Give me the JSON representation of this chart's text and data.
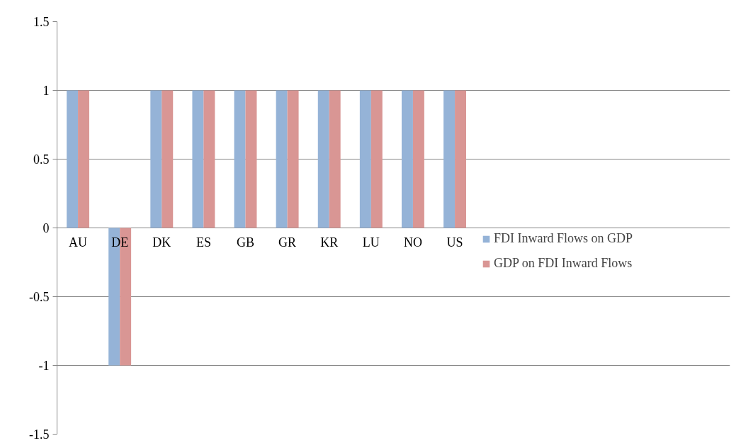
{
  "chart_data": {
    "type": "bar",
    "categories": [
      "AU",
      "DE",
      "DK",
      "ES",
      "GB",
      "GR",
      "KR",
      "LU",
      "NO",
      "US"
    ],
    "series": [
      {
        "name": "FDI Inward Flows on GDP",
        "color": "#95b3d7",
        "values": [
          1,
          -1,
          1,
          1,
          1,
          1,
          1,
          1,
          1,
          1
        ]
      },
      {
        "name": "GDP on FDI Inward Flows",
        "color": "#d99694",
        "values": [
          1,
          -1,
          1,
          1,
          1,
          1,
          1,
          1,
          1,
          1
        ]
      }
    ],
    "ylim": [
      -1.5,
      1.5
    ],
    "yticks": [
      -1.5,
      -1,
      -0.5,
      0,
      0.5,
      1,
      1.5
    ],
    "grid": "y",
    "legend": "right"
  }
}
